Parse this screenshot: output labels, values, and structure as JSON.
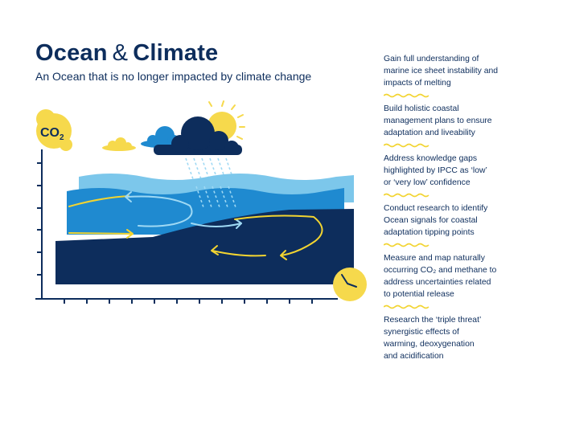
{
  "header": {
    "title_part1": "Ocean",
    "title_amp": "&",
    "title_part2": "Climate",
    "subtitle": "An Ocean that is no longer impacted by climate change"
  },
  "illustration": {
    "co2_label": "CO",
    "co2_subscript": "2",
    "icons": [
      "co2-bubble-icon",
      "sun-icon",
      "cloud-icon",
      "rain-cloud-icon",
      "clock-icon"
    ],
    "colors": {
      "navy": "#0d2d5c",
      "mid_blue": "#1f8ad0",
      "light_blue": "#7cc7eb",
      "yellow": "#f6d94c",
      "arrow_yellow": "#f2d431",
      "arrow_light": "#9fd9f4"
    }
  },
  "actions": [
    {
      "lines": [
        "Gain full understanding of",
        "marine ice sheet instability and",
        "impacts of melting"
      ]
    },
    {
      "lines": [
        "Build holistic coastal",
        "management plans to ensure",
        "adaptation and liveability"
      ]
    },
    {
      "lines": [
        "Address knowledge gaps",
        "highlighted by IPCC as ‘low’",
        "or ‘very low’ confidence"
      ]
    },
    {
      "lines": [
        "Conduct research to identify",
        "Ocean signals for coastal",
        "adaptation tipping points"
      ]
    },
    {
      "lines": [
        "Measure and map naturally",
        "occurring CO₂ and methane to",
        "address uncertainties related",
        "to potential release"
      ]
    },
    {
      "lines": [
        "Research the ‘triple threat’",
        "synergistic effects of",
        "warming, deoxygenation",
        "and acidification"
      ]
    }
  ]
}
